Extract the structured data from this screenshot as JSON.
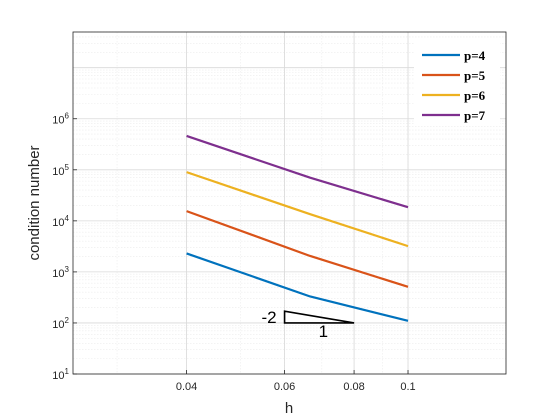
{
  "chart_data": {
    "type": "line",
    "xlabel": "h",
    "ylabel": "condition number",
    "x_scale": "log",
    "y_scale": "log",
    "xlim": [
      0.025,
      0.15
    ],
    "ylim": [
      10,
      50000000
    ],
    "x_ticks": [
      0.04,
      0.06,
      0.08,
      0.1
    ],
    "x_tick_labels": [
      "0.04",
      "0.06",
      "0.08",
      "0.1"
    ],
    "y_ticks": [
      {
        "base": "10",
        "exp": "1",
        "value": 10
      },
      {
        "base": "10",
        "exp": "2",
        "value": 100
      },
      {
        "base": "10",
        "exp": "3",
        "value": 1000
      },
      {
        "base": "10",
        "exp": "4",
        "value": 10000
      },
      {
        "base": "10",
        "exp": "5",
        "value": 100000
      },
      {
        "base": "10",
        "exp": "6",
        "value": 1000000
      }
    ],
    "grid": true,
    "minor_grid": true,
    "legend_position": "top-right",
    "series": [
      {
        "name": "p=4",
        "color": "#0072BD",
        "x": [
          0.04,
          0.0667,
          0.1
        ],
        "y": [
          2300,
          330,
          110
        ]
      },
      {
        "name": "p=5",
        "color": "#D95319",
        "x": [
          0.04,
          0.0667,
          0.1
        ],
        "y": [
          15500,
          2050,
          510
        ]
      },
      {
        "name": "p=6",
        "color": "#EDB120",
        "x": [
          0.04,
          0.0667,
          0.1
        ],
        "y": [
          90000,
          13500,
          3200
        ]
      },
      {
        "name": "p=7",
        "color": "#7E2F8E",
        "x": [
          0.04,
          0.0667,
          0.1
        ],
        "y": [
          460000,
          70000,
          18500
        ]
      }
    ],
    "slope_triangle": {
      "x": [
        0.06,
        0.08
      ],
      "y": [
        100,
        170
      ],
      "slope_label": "-2",
      "run_label": "1"
    }
  }
}
